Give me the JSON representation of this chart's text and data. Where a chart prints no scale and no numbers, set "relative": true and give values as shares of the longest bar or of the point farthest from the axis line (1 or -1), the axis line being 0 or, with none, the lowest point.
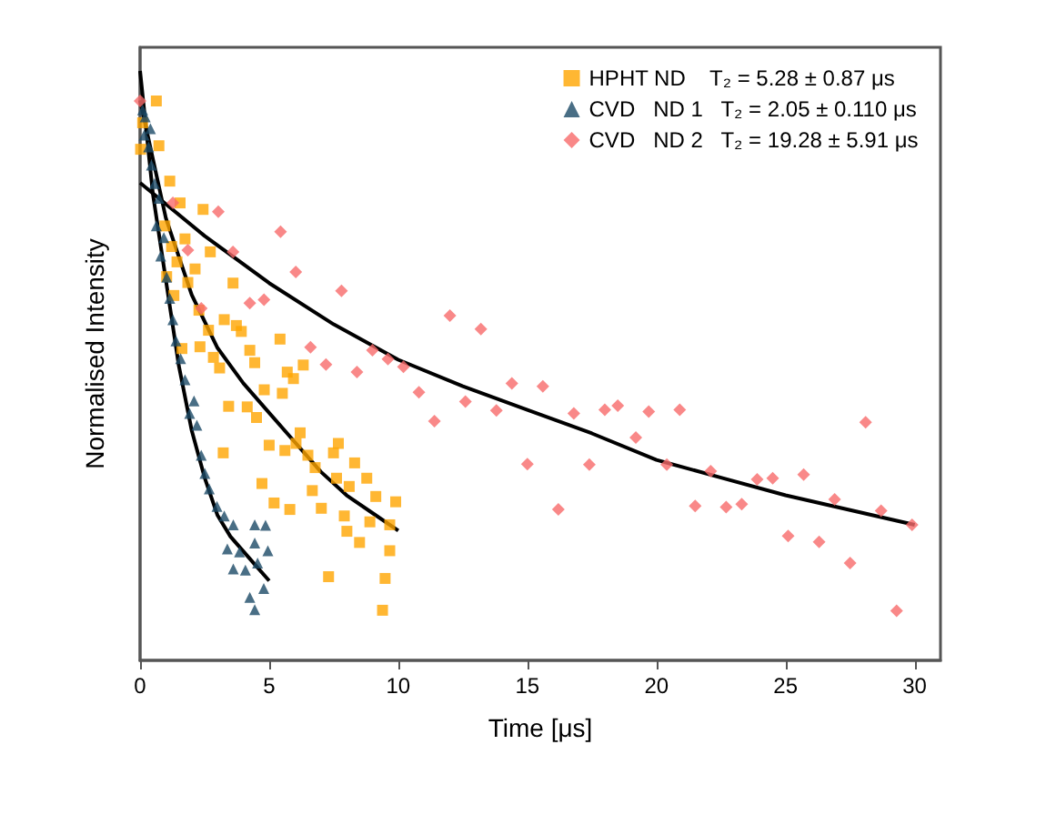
{
  "chart_data": {
    "type": "scatter",
    "xlabel": "Time [μs]",
    "ylabel": "Normalised Intensity",
    "relative": true,
    "xlim": [
      0,
      31
    ],
    "xticks": [
      0,
      5,
      10,
      15,
      20,
      25,
      30
    ],
    "tick_labels": "x",
    "grid": false,
    "legend": "top right",
    "series": [
      {
        "name": "HPHT ND    T₂ = 5.28 ± 0.87 μs",
        "marker": "square",
        "color": "#ffa500",
        "x": [
          0.63,
          0.1,
          0.73,
          0.02,
          1.15,
          1.55,
          2.44,
          0.96,
          1.74,
          2.72,
          1.22,
          1.43,
          2.13,
          1.03,
          1.85,
          3.6,
          1.31,
          2.28,
          3.26,
          3.73,
          2.65,
          3.92,
          5.42,
          1.62,
          2.32,
          4.25,
          2.84,
          6.32,
          4.44,
          3.08,
          5.7,
          5.94,
          4.81,
          5.51,
          3.43,
          4.15,
          4.51,
          6.2,
          5.0,
          6.04,
          7.68,
          3.22,
          5.61,
          6.5,
          7.49,
          8.31,
          6.78,
          7.61,
          8.78,
          4.72,
          6.67,
          8.1,
          9.13,
          9.9,
          5.19,
          5.8,
          7.02,
          7.91,
          8.9,
          9.67,
          8.01,
          8.5,
          9.67,
          7.3,
          9.49,
          9.39
        ],
        "values": [
          0.949,
          0.912,
          0.873,
          0.867,
          0.813,
          0.776,
          0.765,
          0.737,
          0.715,
          0.693,
          0.702,
          0.676,
          0.664,
          0.651,
          0.641,
          0.64,
          0.619,
          0.594,
          0.578,
          0.568,
          0.56,
          0.558,
          0.545,
          0.529,
          0.532,
          0.526,
          0.514,
          0.501,
          0.505,
          0.496,
          0.489,
          0.478,
          0.459,
          0.453,
          0.431,
          0.43,
          0.412,
          0.386,
          0.365,
          0.368,
          0.368,
          0.352,
          0.356,
          0.348,
          0.352,
          0.335,
          0.327,
          0.309,
          0.309,
          0.3,
          0.288,
          0.295,
          0.278,
          0.269,
          0.267,
          0.256,
          0.258,
          0.245,
          0.235,
          0.23,
          0.219,
          0.2,
          0.186,
          0.142,
          0.139,
          0.085
        ]
      },
      {
        "name": "CVD   ND 1   T₂ = 2.05 ± 0.110 μs",
        "marker": "triangle",
        "color": "#1b4a66",
        "x": [
          0.1,
          0.2,
          0.16,
          0.4,
          0.33,
          0.44,
          0.56,
          0.73,
          0.63,
          0.92,
          0.8,
          1.03,
          1.15,
          1.27,
          1.39,
          1.57,
          1.74,
          2.09,
          1.92,
          2.2,
          2.37,
          2.51,
          2.68,
          2.98,
          3.26,
          3.61,
          4.44,
          4.86,
          3.38,
          3.85,
          4.44,
          4.95,
          3.61,
          4.08,
          4.55,
          4.79,
          4.25,
          4.44
        ],
        "values": [
          0.934,
          0.922,
          0.891,
          0.902,
          0.871,
          0.84,
          0.809,
          0.784,
          0.737,
          0.717,
          0.686,
          0.65,
          0.614,
          0.578,
          0.542,
          0.512,
          0.476,
          0.44,
          0.419,
          0.399,
          0.348,
          0.317,
          0.291,
          0.261,
          0.245,
          0.23,
          0.23,
          0.229,
          0.189,
          0.184,
          0.199,
          0.186,
          0.155,
          0.153,
          0.165,
          0.122,
          0.107,
          0.086
        ]
      },
      {
        "name": "CVD   ND 2   T₂ = 19.28 ± 5.91 μs",
        "marker": "diamond",
        "color": "#f76a6a",
        "x": [
          0,
          1.27,
          3.03,
          5.44,
          1.85,
          3.6,
          6.03,
          7.8,
          4.8,
          4.25,
          2.37,
          6.6,
          7.2,
          8.4,
          9.0,
          9.6,
          10.2,
          10.8,
          11.4,
          12.0,
          13.2,
          12.6,
          13.8,
          14.4,
          15.0,
          15.6,
          16.2,
          16.8,
          17.4,
          18.0,
          18.5,
          19.2,
          19.7,
          20.4,
          20.9,
          21.5,
          22.1,
          22.7,
          23.3,
          23.9,
          24.5,
          25.1,
          25.7,
          26.3,
          26.9,
          27.5,
          28.1,
          28.7,
          29.3,
          29.9
        ],
        "values": [
          0.949,
          0.776,
          0.761,
          0.727,
          0.696,
          0.693,
          0.659,
          0.627,
          0.612,
          0.606,
          0.597,
          0.531,
          0.502,
          0.489,
          0.526,
          0.511,
          0.498,
          0.455,
          0.406,
          0.585,
          0.562,
          0.439,
          0.424,
          0.47,
          0.333,
          0.465,
          0.256,
          0.419,
          0.332,
          0.425,
          0.432,
          0.378,
          0.422,
          0.332,
          0.425,
          0.262,
          0.321,
          0.26,
          0.265,
          0.307,
          0.309,
          0.211,
          0.315,
          0.201,
          0.273,
          0.165,
          0.404,
          0.254,
          0.084,
          0.23
        ]
      },
      {
        "type": "line",
        "marker": "none",
        "line_style": "solid",
        "color": "#000000",
        "x": [
          0,
          0.5,
          1,
          1.5,
          2,
          2.5,
          3,
          3.5,
          4,
          4.5,
          5
        ],
        "values": [
          1.0,
          0.79,
          0.645,
          0.5,
          0.39,
          0.31,
          0.246,
          0.21,
          0.185,
          0.16,
          0.135
        ]
      },
      {
        "type": "line",
        "marker": "none",
        "line_style": "solid",
        "color": "#000000",
        "x": [
          0,
          1,
          2,
          3,
          4,
          5,
          6,
          7,
          8,
          9,
          10
        ],
        "values": [
          0.95,
          0.75,
          0.62,
          0.53,
          0.47,
          0.42,
          0.37,
          0.32,
          0.28,
          0.25,
          0.22
        ]
      },
      {
        "type": "line",
        "marker": "none",
        "line_style": "solid",
        "color": "#000000",
        "x": [
          0,
          2.5,
          5,
          7.5,
          10,
          12.5,
          15,
          17.5,
          20,
          22.5,
          25,
          27.5,
          30
        ],
        "values": [
          0.81,
          0.72,
          0.64,
          0.57,
          0.51,
          0.465,
          0.425,
          0.385,
          0.34,
          0.31,
          0.28,
          0.255,
          0.23
        ]
      }
    ]
  }
}
